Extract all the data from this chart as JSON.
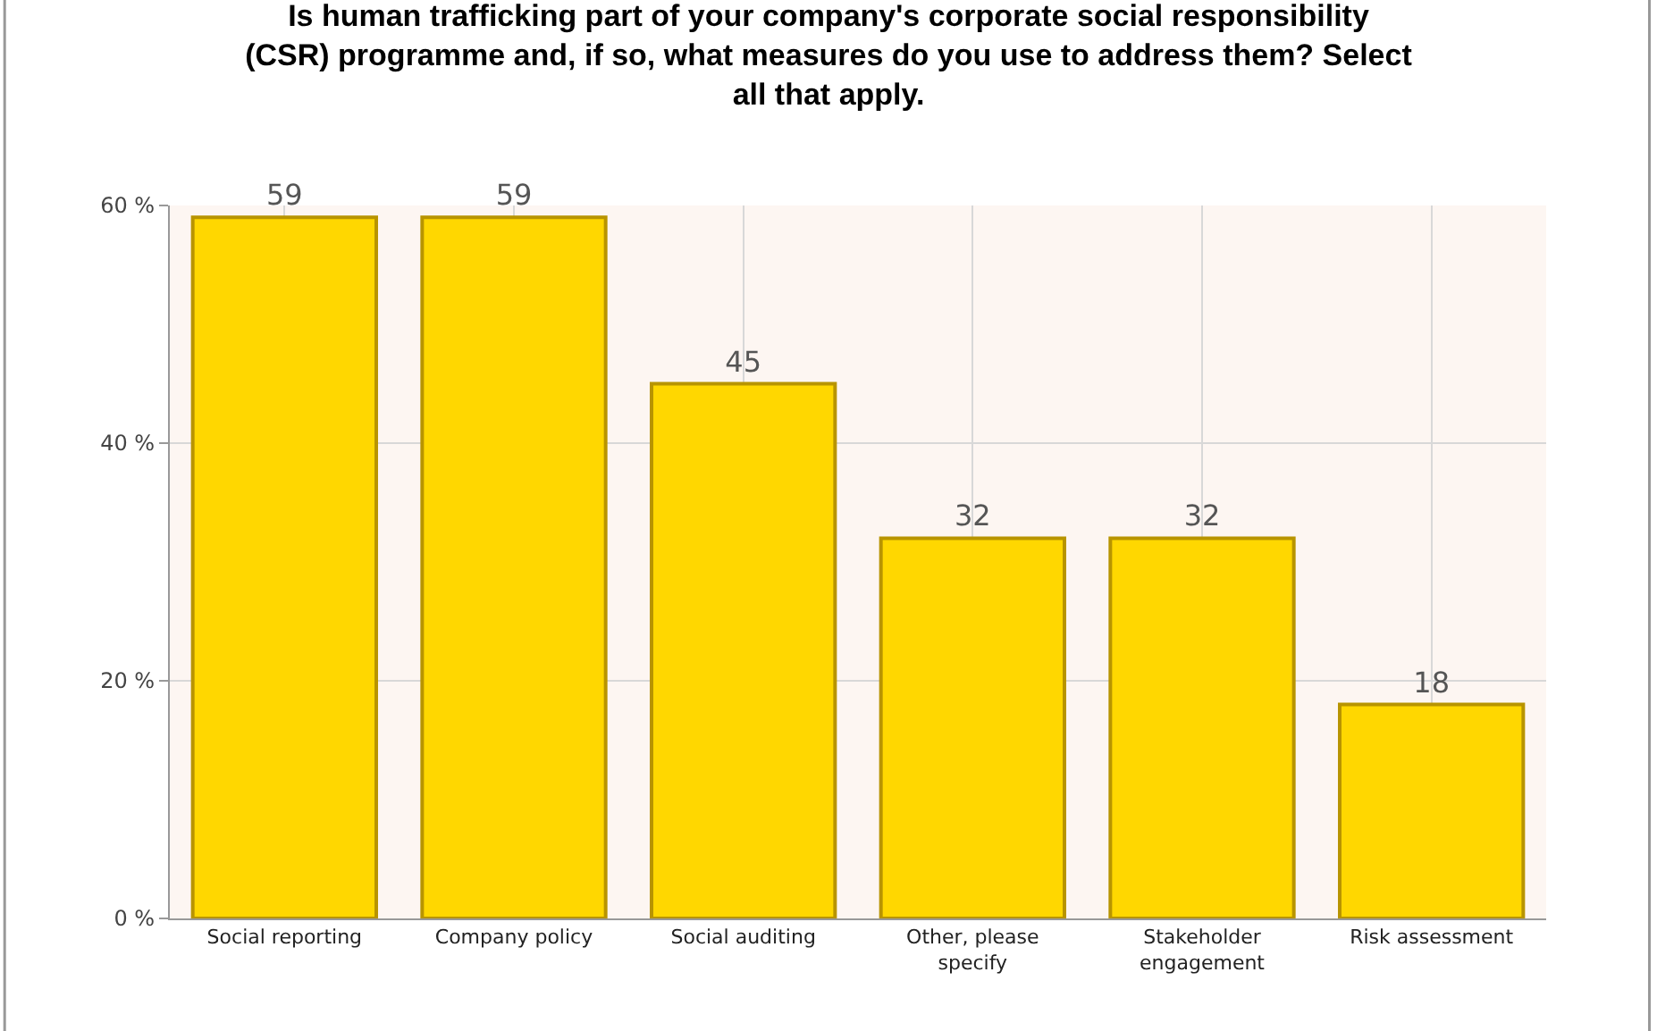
{
  "chart_data": {
    "type": "bar",
    "title": "Is human trafficking part of your company's corporate social responsibility (CSR) programme and, if so, what measures do you use to address them? Select all that apply.",
    "categories": [
      "Social reporting",
      "Company policy",
      "Social auditing",
      "Other, please specify",
      "Stakeholder engagement",
      "Risk assessment"
    ],
    "values": [
      59,
      59,
      45,
      32,
      32,
      18
    ],
    "color": "#ffd700",
    "ylim": [
      0,
      60
    ],
    "yticks": [
      {
        "value": 0,
        "label": "0 %"
      },
      {
        "value": 20,
        "label": "20 %"
      },
      {
        "value": 40,
        "label": "40 %"
      },
      {
        "value": 60,
        "label": "60 %"
      }
    ],
    "grid": true,
    "data_labels": true
  }
}
